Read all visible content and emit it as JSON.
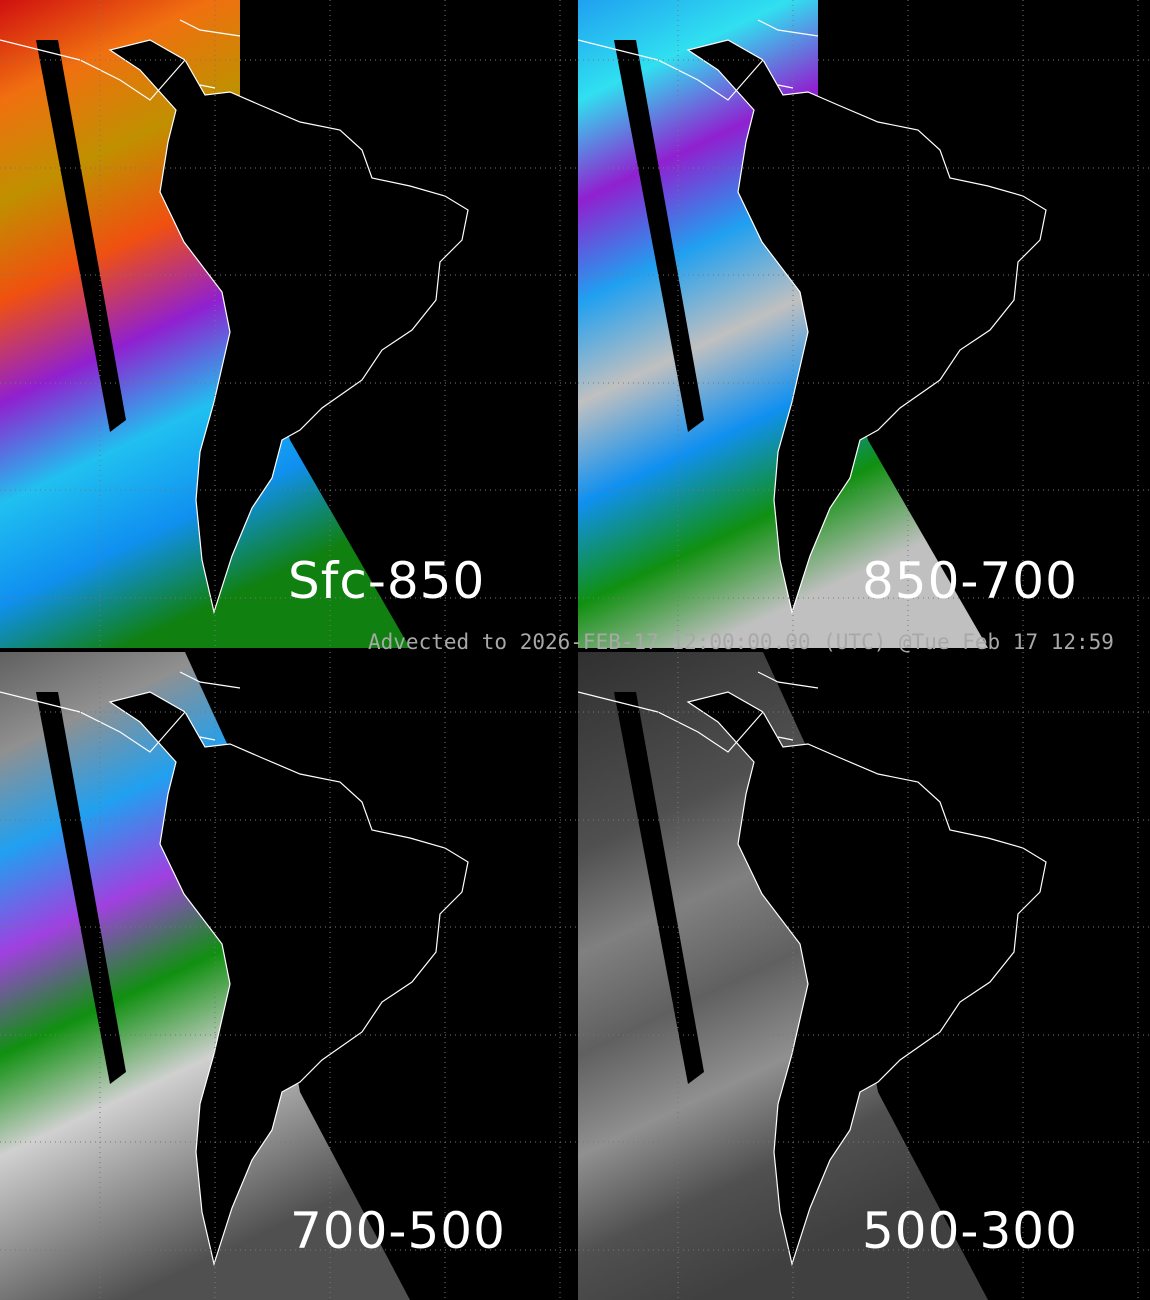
{
  "panels": [
    {
      "label": "Sfc-850",
      "colors": [
        "#d01010",
        "#f07010",
        "#c09000",
        "#f05010",
        "#9020d0",
        "#20c0f0",
        "#1090f0",
        "#108010"
      ]
    },
    {
      "label": "850-700",
      "colors": [
        "#20a0f0",
        "#30e0f0",
        "#9020d0",
        "#20a0f0",
        "#c0c0c0",
        "#1090f0",
        "#109010",
        "#c0c0c0"
      ]
    },
    {
      "label": "700-500",
      "colors": [
        "#606060",
        "#909090",
        "#20a0f0",
        "#a040e0",
        "#109010",
        "#d0d0d0",
        "#909090",
        "#505050"
      ]
    },
    {
      "label": "500-300",
      "colors": [
        "#303030",
        "#404040",
        "#505050",
        "#808080",
        "#606060",
        "#909090",
        "#505050",
        "#404040"
      ]
    }
  ],
  "timestamp": "Advected to 2026-FEB-17 12:00:00.00 (UTC) @Tue Feb 17 12:59"
}
